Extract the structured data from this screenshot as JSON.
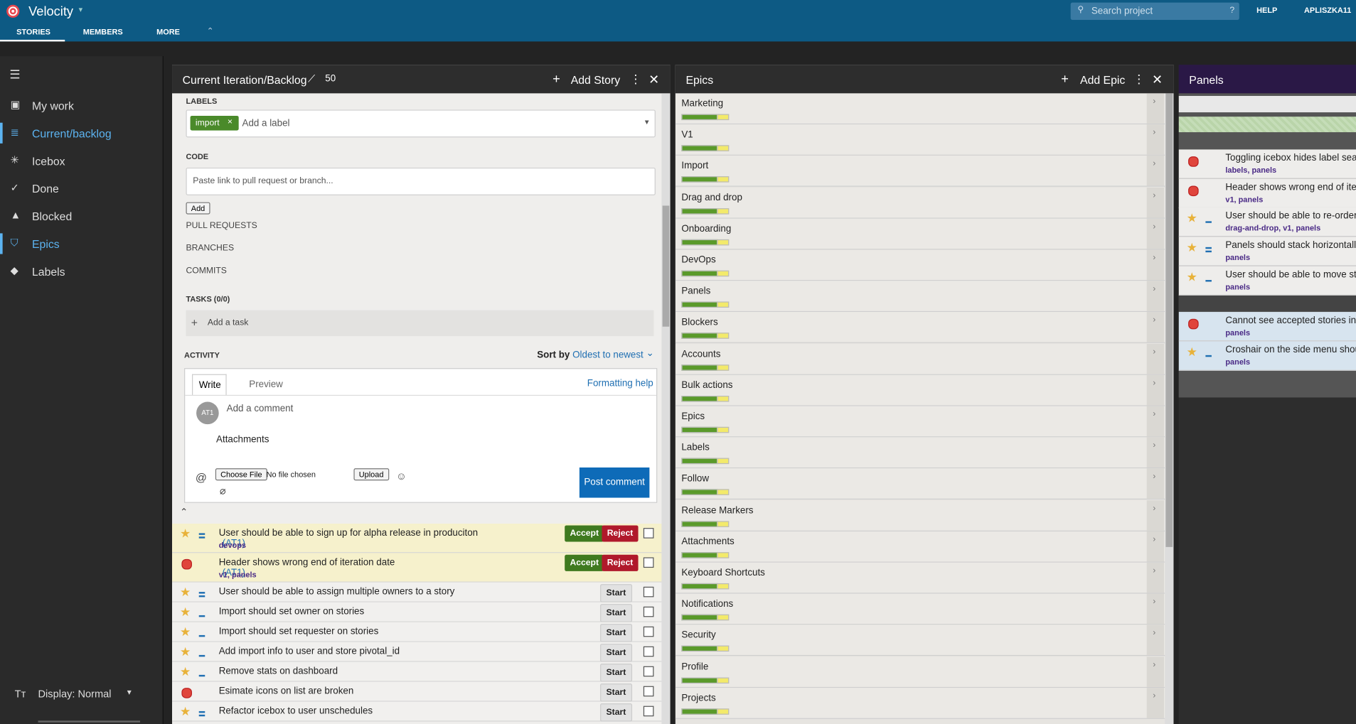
{
  "header": {
    "app": "Velocity",
    "tabs": [
      "STORIES",
      "MEMBERS",
      "MORE"
    ],
    "search": "Search project",
    "search_help": "?",
    "help": "HELP",
    "user": "APLISZKA11"
  },
  "sidebar": {
    "items": [
      {
        "label": "My work",
        "active": false
      },
      {
        "label": "Current/backlog",
        "active": true
      },
      {
        "label": "Icebox",
        "active": false
      },
      {
        "label": "Done",
        "active": false
      },
      {
        "label": "Blocked",
        "active": false
      },
      {
        "label": "Epics",
        "active": true
      },
      {
        "label": "Labels",
        "active": false
      }
    ],
    "display": "Display: Normal"
  },
  "backlog": {
    "title": "Current Iteration/Backlog",
    "points": 50,
    "add": "Add Story",
    "labels_heading": "LABELS",
    "label_chip": "import",
    "label_placeholder": "Add a label",
    "code_heading": "CODE",
    "code_placeholder": "Paste link to pull request or branch...",
    "code_add": "Add",
    "pull_requests": "PULL REQUESTS",
    "branches": "BRANCHES",
    "commits": "COMMITS",
    "tasks_heading": "TASKS (0/0)",
    "add_task": "Add a task",
    "activity_heading": "ACTIVITY",
    "sort_by": "Sort by",
    "sort_value": "Oldest to newest",
    "write": "Write",
    "preview": "Preview",
    "formatting_help": "Formatting help",
    "avatar": "AT1",
    "comment_placeholder": "Add a comment",
    "attachments": "Attachments",
    "choose_file": "Choose File",
    "no_file": "No file chosen",
    "upload": "Upload",
    "post": "Post comment",
    "stories": [
      {
        "type": "feature",
        "estimate": 2,
        "title": "User should be able to sign up for alpha release in produciton",
        "owner": "(AT1)",
        "labels": "devops",
        "buttons": [
          "Accept",
          "Reject"
        ]
      },
      {
        "type": "bug",
        "title": "Header shows wrong end of iteration date",
        "owner": "(AT1)",
        "labels": "v1, panels",
        "buttons": [
          "Accept",
          "Reject"
        ]
      },
      {
        "type": "feature",
        "estimate": 2,
        "title": "User should be able to assign multiple owners to a story",
        "buttons": [
          "Start"
        ]
      },
      {
        "type": "feature",
        "estimate": 1,
        "title": "Import should set owner on stories",
        "buttons": [
          "Start"
        ]
      },
      {
        "type": "feature",
        "estimate": 1,
        "title": "Import should set requester on stories",
        "buttons": [
          "Start"
        ]
      },
      {
        "type": "feature",
        "estimate": 1,
        "title": "Add import info to user and store pivotal_id",
        "buttons": [
          "Start"
        ]
      },
      {
        "type": "feature",
        "estimate": 1,
        "title": "Remove stats on dashboard",
        "buttons": [
          "Start"
        ]
      },
      {
        "type": "bug",
        "title": "Esimate icons on list are broken",
        "buttons": [
          "Start"
        ]
      },
      {
        "type": "feature",
        "estimate": 2,
        "title": "Refactor icebox to user unschedules",
        "buttons": [
          "Start"
        ]
      }
    ]
  },
  "epics": {
    "title": "Epics",
    "add": "Add Epic",
    "items": [
      "Marketing",
      "V1",
      "Import",
      "Drag and drop",
      "Onboarding",
      "DevOps",
      "Panels",
      "Blockers",
      "Accounts",
      "Bulk actions",
      "Epics",
      "Labels",
      "Follow",
      "Release Markers",
      "Attachments",
      "Keyboard Shortcuts",
      "Notifications",
      "Security",
      "Profile",
      "Projects"
    ]
  },
  "panels": {
    "title": "Panels",
    "stories": [
      {
        "type": "bug",
        "title": "Toggling icebox hides label searc",
        "labels": "labels, panels"
      },
      {
        "type": "bug",
        "title": "Header shows wrong end of iter",
        "labels": "v1, panels"
      },
      {
        "type": "feature",
        "estimate": 1,
        "title": "User should be able to re-order",
        "labels": "drag-and-drop, v1, panels"
      },
      {
        "type": "feature",
        "estimate": 2,
        "title": "Panels should stack horizontall",
        "labels": "panels"
      },
      {
        "type": "feature",
        "estimate": 1,
        "title": "User should be able to move sto",
        "labels": "panels"
      }
    ],
    "accepted": [
      {
        "type": "bug",
        "title": "Cannot see accepted stories in c",
        "labels": "panels"
      },
      {
        "type": "feature",
        "estimate": 1,
        "title": "Croshair on the side menu shou",
        "labels": "panels"
      }
    ]
  }
}
